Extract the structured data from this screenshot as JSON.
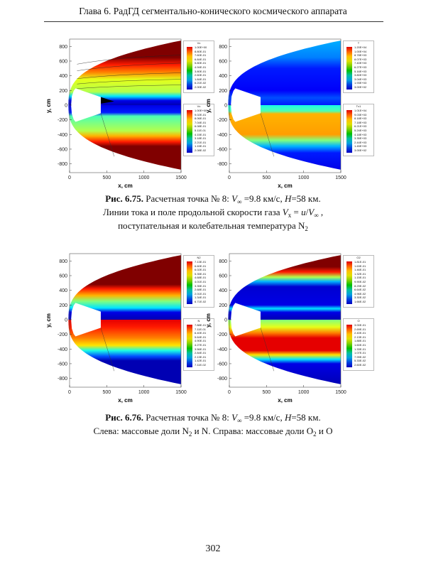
{
  "header": {
    "title": "Глава 6. РадГД сегментально-конического космического аппарата"
  },
  "axes": {
    "x_label": "x, cm",
    "y_label": "y, cm",
    "x_ticks": [
      "0",
      "500",
      "1000",
      "1500"
    ],
    "y_ticks": [
      "800",
      "600",
      "400",
      "200",
      "0",
      "-200",
      "-400",
      "-600",
      "-800"
    ]
  },
  "figures": [
    {
      "panels": [
        {
          "legends": [
            {
              "title": "Vx",
              "values": [
                "1.00E+00",
                "8.80E-01",
                "7.60E-01",
                "6.84E-01",
                "5.80E-01",
                "4.94E-01",
                "3.80E-01",
                "2.60E-01",
                "1.84E-01",
                "6.21E-02",
                "2.00E-02"
              ]
            },
            {
              "title": "Vx",
              "values": [
                "1.00E+00",
                "9.02E-01",
                "8.06E-01",
                "7.04E-01",
                "6.08E-01",
                "5.11E-01",
                "4.15E-01",
                "3.18E-01",
                "2.21E-01",
                "1.15E-01",
                "2.08E-02"
              ]
            }
          ]
        },
        {
          "legends": [
            {
              "title": "T",
              "values": [
                "1.20E+04",
                "1.00E+04",
                "8.78E+03",
                "8.07E+03",
                "7.40E+03",
                "6.27E+03",
                "5.16E+03",
                "3.80E+03",
                "3.04E+03",
                "1.93E+03",
                "3.00E+02"
              ]
            },
            {
              "title": "Tv1",
              "values": [
                "1.01E+04",
                "9.03E+03",
                "8.18E+03",
                "7.18E+03",
                "6.21E+03",
                "5.24E+03",
                "4.18E+03",
                "3.35E+03",
                "2.44E+03",
                "1.45E+03",
                "3.00E+02"
              ]
            }
          ]
        }
      ],
      "caption": [
        [
          {
            "s": "b",
            "t": "Рис. 6.75."
          },
          {
            "s": "n",
            "t": " Расчетная точка № 8: "
          },
          {
            "s": "i",
            "t": "V"
          },
          {
            "s": "sub",
            "t": "∞"
          },
          {
            "s": "n",
            "t": " =9.8 км/с, "
          },
          {
            "s": "i",
            "t": "H"
          },
          {
            "s": "n",
            "t": "=58 км."
          }
        ],
        [
          {
            "s": "n",
            "t": "Линии тока и поле продольной скорости газа "
          },
          {
            "s": "i",
            "t": "V"
          },
          {
            "s": "sub",
            "t": "x"
          },
          {
            "s": "n",
            "t": " = "
          },
          {
            "s": "i",
            "t": "u"
          },
          {
            "s": "n",
            "t": "/"
          },
          {
            "s": "i",
            "t": "V"
          },
          {
            "s": "sub",
            "t": "∞"
          },
          {
            "s": "n",
            "t": " ,"
          }
        ],
        [
          {
            "s": "n",
            "t": "поступательная и колебательная температура N"
          },
          {
            "s": "sub",
            "t": "2"
          }
        ]
      ]
    },
    {
      "panels": [
        {
          "legends": [
            {
              "title": "N2",
              "values": [
                "7.13E-01",
                "6.60E-01",
                "6.02E-01",
                "5.35E-01",
                "4.68E-01",
                "4.01E-01",
                "3.35E-01",
                "2.68E-01",
                "2.01E-01",
                "1.34E-01",
                "6.71E-02"
              ]
            },
            {
              "title": "N",
              "values": [
                "7.88E-01",
                "7.11E-01",
                "6.40E-01",
                "5.64E-01",
                "4.90E-01",
                "4.27E-01",
                "3.56E-01",
                "2.84E-01",
                "2.13E-01",
                "1.42E-01",
                "7.11E-02"
              ]
            }
          ]
        },
        {
          "legends": [
            {
              "title": "O2",
              "values": [
                "1.81E-01",
                "1.63E-01",
                "1.46E-01",
                "1.32E-01",
                "1.15E-01",
                "9.90E-02",
                "8.29E-02",
                "6.64E-02",
                "4.96E-02",
                "3.30E-02",
                "1.66E-02"
              ]
            },
            {
              "title": "O",
              "values": [
                "3.00E-01",
                "2.69E-01",
                "2.40E-01",
                "2.13E-01",
                "1.88E-01",
                "1.60E-01",
                "1.33E-01",
                "1.07E-01",
                "7.99E-02",
                "5.33E-02",
                "2.60E-02"
              ]
            }
          ]
        }
      ],
      "caption": [
        [
          {
            "s": "b",
            "t": "Рис. 6.76."
          },
          {
            "s": "n",
            "t": " Расчетная точка № 8: "
          },
          {
            "s": "i",
            "t": "V"
          },
          {
            "s": "sub",
            "t": "∞"
          },
          {
            "s": "n",
            "t": " =9.8 км/с, "
          },
          {
            "s": "i",
            "t": "H"
          },
          {
            "s": "n",
            "t": "=58 км."
          }
        ],
        [
          {
            "s": "n",
            "t": "Слева: массовые доли N"
          },
          {
            "s": "sub",
            "t": "2"
          },
          {
            "s": "n",
            "t": " и N. Справа: массовые доли O"
          },
          {
            "s": "sub",
            "t": "2"
          },
          {
            "s": "n",
            "t": " и O"
          }
        ]
      ]
    }
  ],
  "page_number": "302"
}
